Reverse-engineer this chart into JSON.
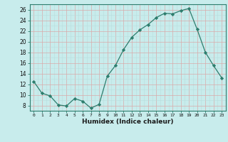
{
  "x": [
    0,
    1,
    2,
    3,
    4,
    5,
    6,
    7,
    8,
    9,
    10,
    11,
    12,
    13,
    14,
    15,
    16,
    17,
    18,
    19,
    20,
    21,
    22,
    23
  ],
  "y": [
    12.5,
    10.3,
    9.8,
    8.1,
    7.9,
    9.3,
    8.8,
    7.5,
    8.2,
    13.5,
    15.5,
    18.5,
    20.8,
    22.2,
    23.2,
    24.5,
    25.3,
    25.2,
    25.8,
    26.2,
    22.3,
    18.0,
    15.5,
    13.2
  ],
  "line_color": "#2d7d6d",
  "marker": "D",
  "marker_size": 2.2,
  "bg_color": "#c8ecec",
  "grid_major_color": "#d8aaaa",
  "grid_minor_color": "#b8dcdc",
  "xlabel": "Humidex (Indice chaleur)",
  "ylabel_ticks": [
    8,
    10,
    12,
    14,
    16,
    18,
    20,
    22,
    24,
    26
  ],
  "xtick_labels": [
    "0",
    "1",
    "2",
    "3",
    "4",
    "5",
    "6",
    "7",
    "8",
    "9",
    "10",
    "11",
    "12",
    "13",
    "14",
    "15",
    "16",
    "17",
    "18",
    "19",
    "20",
    "21",
    "22",
    "23"
  ],
  "xlim": [
    -0.5,
    23.5
  ],
  "ylim": [
    7.0,
    27.0
  ]
}
